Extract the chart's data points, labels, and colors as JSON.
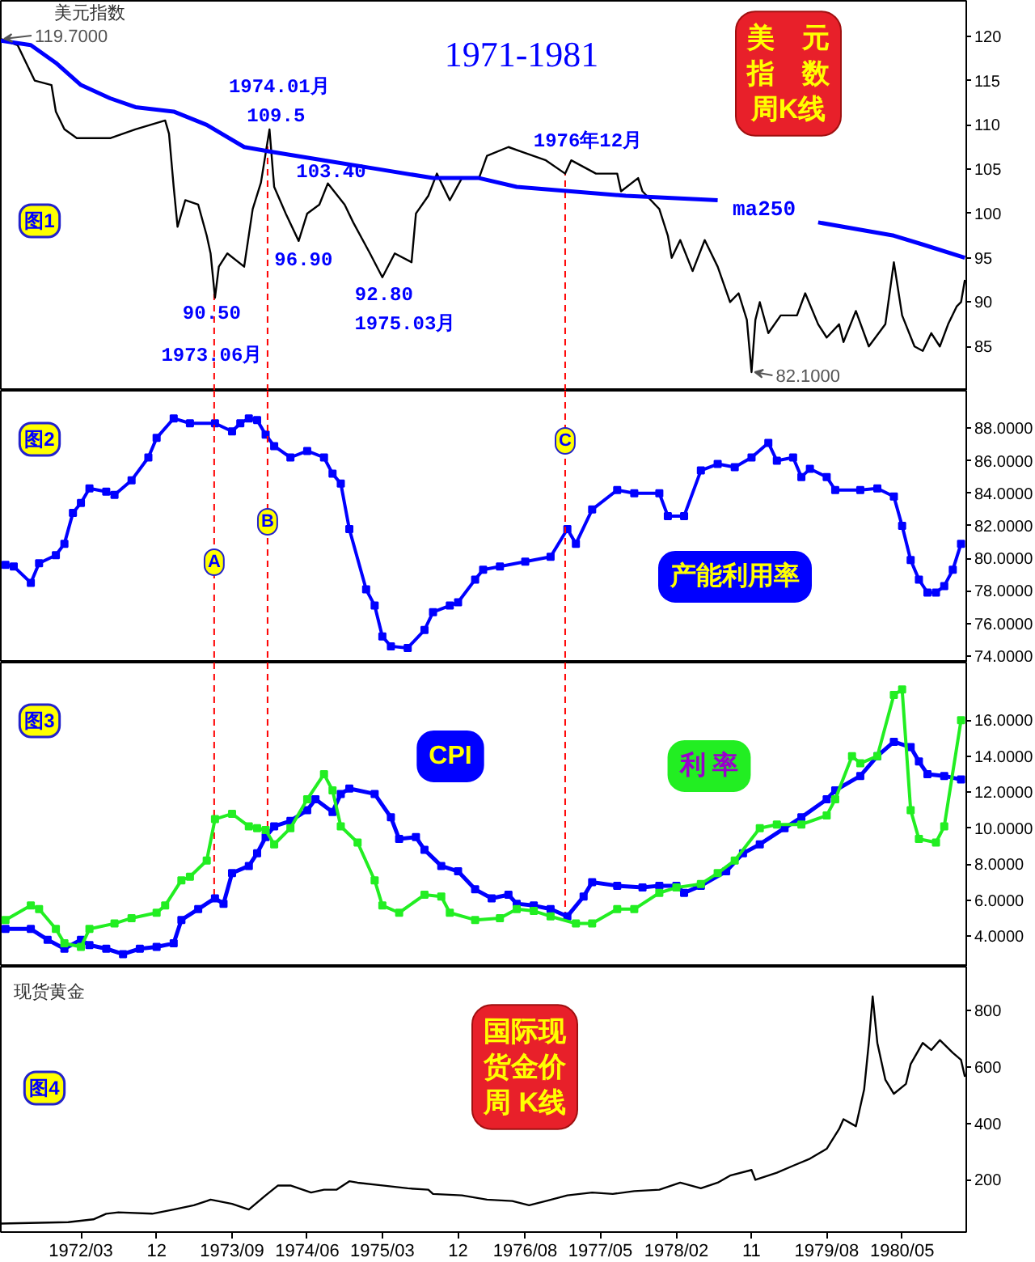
{
  "chart_data": [
    {
      "type": "line",
      "title": "1971-1981",
      "annotations": [
        "美元指数",
        "图1",
        "美　元指　数周K线",
        {
          "text": "119.7000",
          "x": "1971-05-15",
          "y": 119.7
        },
        {
          "text": "1974.01月",
          "x": "1974-01-15",
          "y": 109.5
        },
        {
          "text": "109.5",
          "x": "1974-01-15",
          "y": 109.5
        },
        {
          "text": "103.40",
          "x": "1974-08-15",
          "y": 103.4
        },
        {
          "text": "96.90",
          "x": "1974-05-01",
          "y": 96.9
        },
        {
          "text": "90.50",
          "x": "1973-07-01",
          "y": 90.5
        },
        {
          "text": "1973.06月",
          "x": "1973-07-01",
          "y": 90.5
        },
        {
          "text": "92.80",
          "x": "1975-03-01",
          "y": 92.8
        },
        {
          "text": "1975.03月",
          "x": "1975-03-01",
          "y": 92.8
        },
        {
          "text": "1976年12月",
          "x": "1976-12-24",
          "y": 104.5
        },
        {
          "text": "82.1000",
          "x": "1978-11-01",
          "y": 82.1
        }
      ],
      "xlim": [
        "1971-05-15",
        "1980-12-20"
      ],
      "ylim": [
        80,
        124
      ],
      "yticks": [
        85,
        90,
        95,
        100,
        105,
        110,
        115,
        120
      ],
      "tick_labels": "y",
      "ref_lines": [
        {
          "axis": "x",
          "value": "1973-06-28",
          "color": "#ff0000",
          "line_style": "dashed"
        },
        {
          "axis": "x",
          "value": "1974-01-08",
          "color": "#ff0000",
          "line_style": "dashed"
        },
        {
          "axis": "x",
          "value": "1976-12-24",
          "color": "#ff0000",
          "line_style": "dashed"
        }
      ],
      "series": [
        {
          "color": "#000000",
          "x": [
            "1971-05-15",
            "1971-07-15",
            "1971-08-15",
            "1971-09-15",
            "1971-11-15",
            "1971-12-01",
            "1972-01-01",
            "1972-02-15",
            "1972-06-15",
            "1972-09-15",
            "1973-01-01",
            "1973-01-15",
            "1973-02-01",
            "1973-02-15",
            "1973-03-15",
            "1973-05-01",
            "1973-06-01",
            "1973-06-15",
            "1973-07-01",
            "1973-07-15",
            "1973-08-15",
            "1973-10-15",
            "1973-11-15",
            "1973-12-15",
            "1974-01-15",
            "1974-02-01",
            "1974-03-15",
            "1974-05-01",
            "1974-06-01",
            "1974-07-15",
            "1974-08-15",
            "1974-10-15",
            "1974-11-15",
            "1975-01-15",
            "1975-03-01",
            "1975-04-15",
            "1975-06-15",
            "1975-07-01",
            "1975-08-15",
            "1975-09-15",
            "1975-11-01",
            "1975-12-15",
            "1976-02-15",
            "1976-03-15",
            "1976-06-01",
            "1976-07-15",
            "1976-10-15",
            "1976-12-24",
            "1977-01-15",
            "1977-04-15",
            "1977-07-01",
            "1977-07-15",
            "1977-09-15",
            "1977-10-01",
            "1977-12-01",
            "1978-01-01",
            "1978-01-15",
            "1978-02-15",
            "1978-04-01",
            "1978-05-15",
            "1978-07-01",
            "1978-08-15",
            "1978-09-15",
            "1978-10-15",
            "1978-11-01",
            "1978-11-15",
            "1978-12-01",
            "1979-01-01",
            "1979-02-15",
            "1979-04-15",
            "1979-05-15",
            "1979-07-01",
            "1979-08-01",
            "1979-09-15",
            "1979-10-01",
            "1979-11-15",
            "1980-01-01",
            "1980-03-01",
            "1980-04-01",
            "1980-05-01",
            "1980-06-15",
            "1980-07-15",
            "1980-08-15",
            "1980-09-15",
            "1980-10-15",
            "1980-11-15",
            "1980-12-01",
            "1980-12-15"
          ],
          "values": [
            119.7,
            119,
            117,
            115,
            114.5,
            111.5,
            109.5,
            108.5,
            108.5,
            109.5,
            110.5,
            109,
            103,
            98.5,
            101.5,
            101,
            97.5,
            95.5,
            90.5,
            94,
            95.5,
            94,
            100.5,
            103.5,
            109.5,
            103,
            100,
            96.9,
            100,
            101,
            103.4,
            101,
            99,
            95.5,
            92.8,
            95.5,
            94.5,
            100,
            102,
            104.5,
            101.5,
            104,
            104,
            106.5,
            107.5,
            107,
            106,
            104.5,
            106,
            104.5,
            104.5,
            102.5,
            104,
            102.5,
            100.5,
            97.5,
            95,
            97,
            93.5,
            97,
            94,
            90,
            91,
            88,
            82.1,
            88,
            90,
            86.5,
            88.5,
            88.5,
            91,
            87.5,
            86,
            87.5,
            85.5,
            89,
            85,
            87.5,
            94.5,
            88.5,
            85,
            84.5,
            86.5,
            85,
            87.5,
            89.5,
            90,
            92.5
          ]
        },
        {
          "name": "ma250",
          "color": "#0000ff",
          "x": [
            "1971-05-15",
            "1971-09-01",
            "1971-12-01",
            "1972-03-01",
            "1972-06-15",
            "1972-09-15",
            "1973-02-01",
            "1973-06-01",
            "1973-10-15",
            "1974-01-15",
            "1974-08-01",
            "1975-02-15",
            "1975-09-01",
            "1976-02-15",
            "1976-07-01",
            "1977-08-01",
            "1978-07-01",
            "1979-01-01",
            "1979-07-01",
            "1980-04-01",
            "1980-07-15",
            "1980-12-15"
          ],
          "values": [
            119.5,
            119,
            117,
            114.5,
            113,
            112,
            111.5,
            110,
            107.5,
            107,
            106,
            105,
            104,
            104,
            103,
            102,
            101.5,
            null,
            99,
            97.5,
            96.5,
            95
          ]
        }
      ]
    },
    {
      "type": "line",
      "annotations": [
        "图2"
      ],
      "xlim": [
        "1971-05-15",
        "1980-12-20"
      ],
      "ylim": [
        73.6,
        90.3
      ],
      "yticks": [
        {
          "value": 74,
          "label": "74.0000"
        },
        {
          "value": 76,
          "label": "76.0000"
        },
        {
          "value": 78,
          "label": "78.0000"
        },
        {
          "value": 80,
          "label": "80.0000"
        },
        {
          "value": 82,
          "label": "82.0000"
        },
        {
          "value": 84,
          "label": "84.0000"
        },
        {
          "value": 86,
          "label": "86.0000"
        },
        {
          "value": 88,
          "label": "88.0000"
        }
      ],
      "tick_labels": "y",
      "marker": "square",
      "ref_lines": [
        {
          "axis": "x",
          "value": "1973-06-28",
          "label": "A",
          "color": "#ff0000",
          "line_style": "dashed"
        },
        {
          "axis": "x",
          "value": "1974-01-08",
          "label": "B",
          "color": "#ff0000",
          "line_style": "dashed"
        },
        {
          "axis": "x",
          "value": "1976-12-24",
          "label": "C",
          "color": "#ff0000",
          "line_style": "dashed"
        }
      ],
      "series": [
        {
          "name": "产能利用率",
          "color": "#0000ff",
          "x": [
            "1971-06",
            "1971-07",
            "1971-09",
            "1971-10",
            "1971-12",
            "1972-01",
            "1972-02",
            "1972-03",
            "1972-04",
            "1972-06",
            "1972-07",
            "1972-09",
            "1972-11",
            "1972-12",
            "1973-02",
            "1973-04",
            "1973-07",
            "1973-09",
            "1973-10",
            "1973-11",
            "1973-12",
            "1974-01",
            "1974-02",
            "1974-04",
            "1974-06",
            "1974-08",
            "1974-09",
            "1974-10",
            "1974-11",
            "1975-01",
            "1975-02",
            "1975-03",
            "1975-04",
            "1975-06",
            "1975-08",
            "1975-09",
            "1975-11",
            "1975-12",
            "1976-02",
            "1976-03",
            "1976-05",
            "1976-08",
            "1976-11",
            "1977-01",
            "1977-02",
            "1977-04",
            "1977-07",
            "1977-09",
            "1977-12",
            "1978-01",
            "1978-03",
            "1978-05",
            "1978-07",
            "1978-09",
            "1978-11",
            "1979-01",
            "1979-02",
            "1979-04",
            "1979-05",
            "1979-06",
            "1979-08",
            "1979-09",
            "1979-12",
            "1980-02",
            "1980-04",
            "1980-05",
            "1980-06",
            "1980-07",
            "1980-08",
            "1980-09",
            "1980-10",
            "1980-11",
            "1980-12"
          ],
          "values": [
            79.6,
            79.5,
            78.5,
            79.7,
            80.2,
            80.9,
            82.8,
            83.4,
            84.3,
            84.1,
            83.9,
            84.8,
            86.2,
            87.4,
            88.6,
            88.3,
            88.3,
            87.8,
            88.3,
            88.6,
            88.5,
            87.6,
            86.9,
            86.2,
            86.6,
            86.2,
            85.2,
            84.6,
            81.8,
            78.1,
            77.1,
            75.2,
            74.6,
            74.5,
            75.6,
            76.7,
            77.1,
            77.3,
            78.7,
            79.3,
            79.5,
            79.8,
            80.1,
            81.8,
            80.9,
            83,
            84.2,
            84,
            84,
            82.6,
            82.6,
            85.4,
            85.8,
            85.6,
            86.2,
            87.1,
            86,
            86.2,
            85,
            85.5,
            85,
            84.2,
            84.2,
            84.3,
            83.8,
            82,
            79.9,
            78.7,
            77.9,
            77.9,
            78.3,
            79.3,
            80.9
          ]
        }
      ]
    },
    {
      "type": "line",
      "annotations": [
        "图3"
      ],
      "xlim": [
        "1971-05-15",
        "1980-12-20"
      ],
      "ylim": [
        2.3,
        19.2
      ],
      "yticks": [
        {
          "value": 4,
          "label": "4.0000"
        },
        {
          "value": 6,
          "label": "6.0000"
        },
        {
          "value": 8,
          "label": "8.0000"
        },
        {
          "value": 10,
          "label": "10.0000"
        },
        {
          "value": 12,
          "label": "12.0000"
        },
        {
          "value": 14,
          "label": "14.0000"
        },
        {
          "value": 16,
          "label": "16.0000"
        }
      ],
      "tick_labels": "y",
      "marker": "square",
      "ref_lines": [
        {
          "axis": "x",
          "value": "1973-06-28",
          "color": "#ff0000",
          "line_style": "dashed"
        },
        {
          "axis": "x",
          "value": "1974-01-08",
          "color": "#ff0000",
          "line_style": "dashed"
        },
        {
          "axis": "x",
          "value": "1976-12-24",
          "color": "#ff0000",
          "line_style": "dashed"
        }
      ],
      "series": [
        {
          "name": "CPI",
          "color": "#0000ff",
          "x": [
            "1971-06",
            "1971-09",
            "1971-11",
            "1972-01",
            "1972-03",
            "1972-04",
            "1972-06",
            "1972-08",
            "1972-10",
            "1972-12",
            "1973-02",
            "1973-03",
            "1973-05",
            "1973-07",
            "1973-08",
            "1973-09",
            "1973-11",
            "1973-12",
            "1974-01",
            "1974-02",
            "1974-04",
            "1974-06",
            "1974-07",
            "1974-09",
            "1974-10",
            "1974-11",
            "1975-02",
            "1975-04",
            "1975-05",
            "1975-07",
            "1975-08",
            "1975-10",
            "1975-12",
            "1976-02",
            "1976-04",
            "1976-06",
            "1976-07",
            "1976-09",
            "1976-11",
            "1977-01",
            "1977-03",
            "1977-04",
            "1977-07",
            "1977-10",
            "1977-12",
            "1978-02",
            "1978-03",
            "1978-05",
            "1978-08",
            "1978-10",
            "1978-12",
            "1979-03",
            "1979-05",
            "1979-08",
            "1979-09",
            "1979-12",
            "1980-02",
            "1980-04",
            "1980-06",
            "1980-07",
            "1980-08",
            "1980-10",
            "1980-12"
          ],
          "values": [
            4.4,
            4.4,
            3.8,
            3.3,
            3.8,
            3.5,
            3.3,
            3.0,
            3.3,
            3.4,
            3.6,
            4.9,
            5.5,
            6.1,
            5.8,
            7.5,
            7.9,
            8.6,
            9.5,
            10.1,
            10.4,
            11,
            11.6,
            10.9,
            11.9,
            12.2,
            11.9,
            10.6,
            9.4,
            9.5,
            8.8,
            7.9,
            7.6,
            6.6,
            6.1,
            6.3,
            5.8,
            5.7,
            5.5,
            5.1,
            6.2,
            7.0,
            6.8,
            6.7,
            6.8,
            6.8,
            6.4,
            6.8,
            7.6,
            8.6,
            9.1,
            10,
            10.6,
            11.6,
            12.1,
            12.9,
            14,
            14.8,
            14.5,
            13.7,
            13,
            12.9,
            12.7
          ]
        },
        {
          "name": "利 率",
          "color": "#22ee22",
          "x": [
            "1971-06",
            "1971-09",
            "1971-10",
            "1971-12",
            "1972-01",
            "1972-03",
            "1972-04",
            "1972-07",
            "1972-09",
            "1972-12",
            "1973-01",
            "1973-03",
            "1973-04",
            "1973-06",
            "1973-07",
            "1973-09",
            "1973-11",
            "1973-12",
            "1974-01",
            "1974-02",
            "1974-04",
            "1974-06",
            "1974-08",
            "1974-09",
            "1974-10",
            "1974-12",
            "1975-02",
            "1975-03",
            "1975-05",
            "1975-08",
            "1975-10",
            "1975-11",
            "1976-02",
            "1976-05",
            "1976-07",
            "1976-09",
            "1976-11",
            "1977-02",
            "1977-04",
            "1977-07",
            "1977-09",
            "1977-12",
            "1978-02",
            "1978-05",
            "1978-07",
            "1978-09",
            "1978-12",
            "1979-02",
            "1979-05",
            "1979-08",
            "1979-09",
            "1979-11",
            "1979-12",
            "1980-02",
            "1980-04",
            "1980-05",
            "1980-06",
            "1980-07",
            "1980-09",
            "1980-10",
            "1980-12"
          ],
          "values": [
            4.9,
            5.7,
            5.5,
            4.4,
            3.6,
            3.4,
            4.4,
            4.7,
            5.0,
            5.3,
            5.7,
            7.1,
            7.3,
            8.2,
            10.5,
            10.8,
            10.1,
            10,
            9.9,
            9.1,
            10,
            11.6,
            13,
            12.1,
            10.1,
            9.2,
            7.1,
            5.7,
            5.3,
            6.3,
            6.2,
            5.3,
            4.9,
            5.0,
            5.5,
            5.4,
            5.1,
            4.7,
            4.7,
            5.5,
            5.5,
            6.4,
            6.7,
            6.9,
            7.5,
            8.2,
            10,
            10.2,
            10.2,
            10.7,
            11.6,
            14,
            13.6,
            14,
            17.4,
            17.7,
            11,
            9.4,
            9.2,
            10.1,
            16
          ]
        }
      ]
    },
    {
      "type": "line",
      "annotations": [
        "现货黄金",
        "图4",
        "国际现货金价周 K线"
      ],
      "xlim": [
        "1971-05-15",
        "1980-12-20"
      ],
      "xticks": [
        {
          "value": "1972-03-01",
          "label": "1972/03"
        },
        {
          "value": "1972-12-01",
          "label": "12"
        },
        {
          "value": "1973-09-01",
          "label": "1973/09"
        },
        {
          "value": "1974-06-01",
          "label": "1974/06"
        },
        {
          "value": "1975-03-01",
          "label": "1975/03"
        },
        {
          "value": "1975-12-01",
          "label": "12"
        },
        {
          "value": "1976-08-01",
          "label": "1976/08"
        },
        {
          "value": "1977-05-01",
          "label": "1977/05"
        },
        {
          "value": "1978-02-01",
          "label": "1978/02"
        },
        {
          "value": "1978-11-01",
          "label": "11"
        },
        {
          "value": "1979-08-01",
          "label": "1979/08"
        },
        {
          "value": "1980-05-01",
          "label": "1980/05"
        }
      ],
      "ylim": [
        15,
        955
      ],
      "yticks": [
        200,
        400,
        600,
        800
      ],
      "series": [
        {
          "color": "#000000",
          "x": [
            "1971-05-15",
            "1972-01-15",
            "1972-04-15",
            "1972-06-01",
            "1972-07-15",
            "1972-11-15",
            "1973-02-01",
            "1973-04-15",
            "1973-06-01",
            "1973-06-15",
            "1973-09-01",
            "1973-11-01",
            "1974-01-01",
            "1974-02-15",
            "1974-04-01",
            "1974-06-15",
            "1974-08-01",
            "1974-09-15",
            "1974-11-01",
            "1974-12-01",
            "1975-03-01",
            "1975-06-01",
            "1975-08-15",
            "1975-09-01",
            "1975-12-15",
            "1976-03-15",
            "1976-06-15",
            "1976-08-15",
            "1976-10-15",
            "1977-01-01",
            "1977-04-01",
            "1977-06-15",
            "1977-09-01",
            "1977-12-01",
            "1978-02-15",
            "1978-05-01",
            "1978-07-01",
            "1978-08-15",
            "1978-11-01",
            "1978-11-15",
            "1979-02-01",
            "1979-04-01",
            "1979-06-01",
            "1979-08-01",
            "1979-09-15",
            "1979-10-01",
            "1979-11-15",
            "1979-12-15",
            "1980-01-01",
            "1980-01-15",
            "1980-02-01",
            "1980-03-01",
            "1980-04-01",
            "1980-05-15",
            "1980-06-01",
            "1980-07-15",
            "1980-08-15",
            "1980-09-15",
            "1980-11-01",
            "1980-12-01",
            "1980-12-15"
          ],
          "values": [
            45,
            50,
            60,
            80,
            85,
            80,
            95,
            110,
            125,
            130,
            115,
            95,
            145,
            180,
            180,
            155,
            165,
            165,
            195,
            190,
            180,
            170,
            165,
            150,
            145,
            130,
            125,
            110,
            125,
            145,
            155,
            150,
            160,
            165,
            190,
            170,
            190,
            215,
            235,
            200,
            225,
            250,
            275,
            310,
            380,
            415,
            390,
            520,
            685,
            850,
            685,
            555,
            505,
            540,
            610,
            685,
            660,
            695,
            650,
            625,
            565
          ]
        }
      ]
    }
  ]
}
